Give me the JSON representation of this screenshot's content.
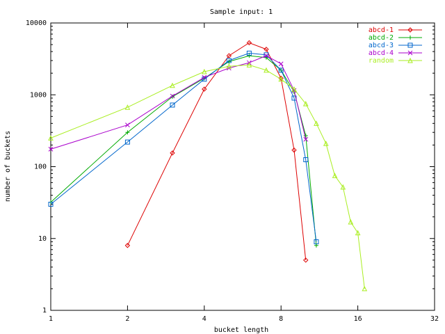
{
  "chart_data": {
    "type": "line",
    "title": "Sample input: 1",
    "xlabel": "bucket length",
    "ylabel": "number of buckets",
    "xscale": "log2",
    "yscale": "log10",
    "xlim": [
      1,
      32
    ],
    "ylim": [
      1,
      10000
    ],
    "x_ticks": [
      1,
      2,
      4,
      8,
      16,
      32
    ],
    "x_tick_labels": [
      "1",
      "2",
      "4",
      "8",
      "16",
      "32"
    ],
    "y_ticks": [
      1,
      10,
      100,
      1000,
      10000
    ],
    "y_tick_labels": [
      "1",
      "10",
      "100",
      "1000",
      "10000"
    ],
    "grid": false,
    "legend_position": "top-right",
    "series": [
      {
        "name": "abcd-1",
        "color": "#dd0000",
        "marker": "diamond",
        "points": [
          [
            2,
            8
          ],
          [
            3,
            155
          ],
          [
            4,
            1200
          ],
          [
            5,
            3500
          ],
          [
            6,
            5300
          ],
          [
            7,
            4300
          ],
          [
            8,
            1700
          ],
          [
            9,
            170
          ],
          [
            10,
            5
          ]
        ]
      },
      {
        "name": "abcd-2",
        "color": "#00aa00",
        "marker": "plus",
        "points": [
          [
            1,
            32
          ],
          [
            2,
            300
          ],
          [
            3,
            940
          ],
          [
            4,
            1700
          ],
          [
            5,
            2900
          ],
          [
            6,
            3500
          ],
          [
            7,
            3300
          ],
          [
            8,
            2200
          ],
          [
            9,
            1100
          ],
          [
            10,
            270
          ],
          [
            11,
            8
          ]
        ]
      },
      {
        "name": "abcd-3",
        "color": "#0066cc",
        "marker": "square",
        "points": [
          [
            1,
            30
          ],
          [
            2,
            220
          ],
          [
            3,
            720
          ],
          [
            4,
            1650
          ],
          [
            5,
            3000
          ],
          [
            6,
            3800
          ],
          [
            7,
            3600
          ],
          [
            8,
            2200
          ],
          [
            9,
            900
          ],
          [
            10,
            125
          ],
          [
            11,
            9
          ]
        ]
      },
      {
        "name": "abcd-4",
        "color": "#aa00cc",
        "marker": "x",
        "points": [
          [
            1,
            175
          ],
          [
            2,
            380
          ],
          [
            3,
            960
          ],
          [
            4,
            1750
          ],
          [
            5,
            2350
          ],
          [
            6,
            2800
          ],
          [
            7,
            3500
          ],
          [
            8,
            2700
          ],
          [
            9,
            1150
          ],
          [
            10,
            240
          ]
        ]
      },
      {
        "name": "random",
        "color": "#aaee22",
        "marker": "triangle",
        "points": [
          [
            1,
            250
          ],
          [
            2,
            670
          ],
          [
            3,
            1350
          ],
          [
            4,
            2100
          ],
          [
            5,
            2500
          ],
          [
            6,
            2600
          ],
          [
            7,
            2200
          ],
          [
            8,
            1650
          ],
          [
            9,
            1200
          ],
          [
            10,
            750
          ],
          [
            11,
            400
          ],
          [
            12,
            210
          ],
          [
            13,
            75
          ],
          [
            14,
            52
          ],
          [
            15,
            17
          ],
          [
            16,
            12
          ],
          [
            17,
            2
          ]
        ]
      }
    ]
  }
}
